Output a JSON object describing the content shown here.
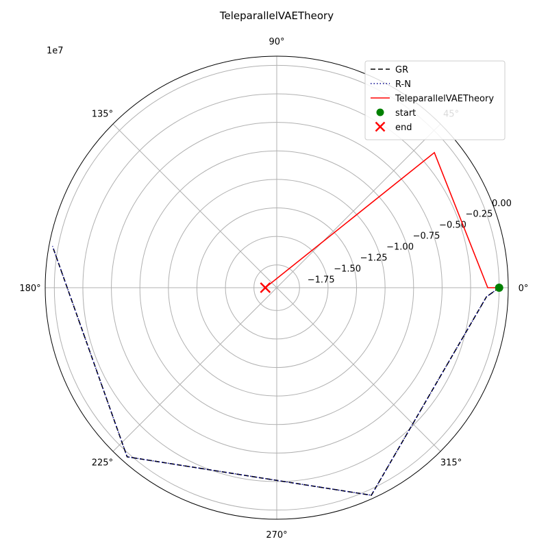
{
  "chart_data": {
    "type": "polar-line",
    "title": "TeleparallelVAETheory",
    "offset_text": "1e7",
    "theta_tick_labels": [
      "0°",
      "45°",
      "90°",
      "135°",
      "180°",
      "225°",
      "270°",
      "315°"
    ],
    "theta_ticks_deg": [
      0,
      45,
      90,
      135,
      180,
      225,
      270,
      315
    ],
    "r_tick_labels": [
      "−1.75",
      "−1.50",
      "−1.25",
      "−1.00",
      "−0.75",
      "−0.50",
      "−0.25",
      "0.00"
    ],
    "r_ticks": [
      -1.75,
      -1.5,
      -1.25,
      -1.0,
      -0.75,
      -0.5,
      -0.25,
      0.0
    ],
    "r_grid": [
      -1.75,
      -1.5,
      -1.25,
      -1.0,
      -0.75,
      -0.5,
      -0.25,
      0.0
    ],
    "rlim": [
      -1.95,
      0.08
    ],
    "r_label_angle_deg": 22.5,
    "grid": true,
    "legend_position": "top-right",
    "series": [
      {
        "name": "GR",
        "style": "dashed",
        "color": "#000000",
        "theta_deg": [
          0,
          357.5,
          294.5,
          228.5,
          169.5
        ],
        "r": [
          0.0,
          -0.11,
          0.05,
          0.03,
          0.05
        ]
      },
      {
        "name": "R-N",
        "style": "dotted",
        "color": "#00008b",
        "theta_deg": [
          0,
          357.5,
          294.5,
          228.5,
          169.5
        ],
        "r": [
          0.0,
          -0.11,
          0.05,
          0.03,
          0.05
        ]
      },
      {
        "name": "TeleparallelVAETheory",
        "style": "solid",
        "color": "#ff0000",
        "theta_deg": [
          0,
          0,
          40.6,
          180
        ],
        "r": [
          0.0,
          -0.1,
          -0.13,
          -1.85
        ]
      }
    ],
    "markers": [
      {
        "name": "start",
        "shape": "circle",
        "color": "#008000",
        "theta_deg": 0,
        "r": 0.0
      },
      {
        "name": "end",
        "shape": "x",
        "color": "#ff0000",
        "theta_deg": 180,
        "r": -1.85
      }
    ]
  }
}
